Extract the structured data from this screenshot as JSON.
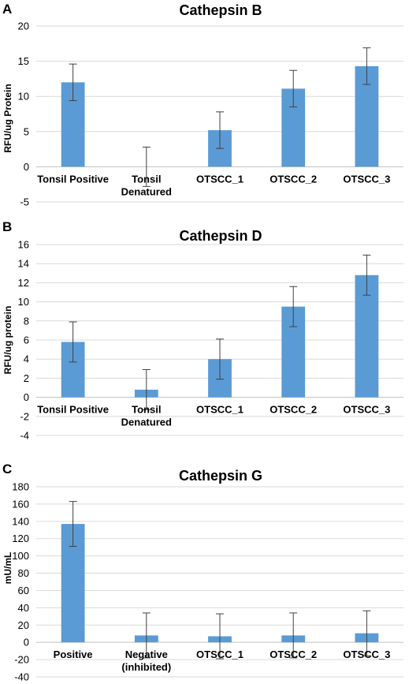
{
  "chart_data": [
    {
      "panel": "A",
      "type": "bar",
      "title": "Cathepsin B",
      "ylabel": "RFU/ug Protein",
      "ylim": [
        -5,
        20
      ],
      "yticks": [
        -5,
        0,
        5,
        10,
        15,
        20
      ],
      "grid": true,
      "categories": [
        [
          "Tonsil Positive"
        ],
        [
          "Tonsil",
          "Denatured"
        ],
        [
          "OTSCC_1"
        ],
        [
          "OTSCC_2"
        ],
        [
          "OTSCC_3"
        ]
      ],
      "values": [
        12.0,
        0.0,
        5.2,
        11.1,
        14.3
      ],
      "errors": [
        2.6,
        2.8,
        2.6,
        2.6,
        2.6
      ],
      "color": "#5b9bd5"
    },
    {
      "panel": "B",
      "type": "bar",
      "title": "Cathepsin D",
      "ylabel": "RFU/ug protein",
      "ylim": [
        -4,
        16
      ],
      "yticks": [
        -4,
        -2,
        0,
        2,
        4,
        6,
        8,
        10,
        12,
        14,
        16
      ],
      "grid": true,
      "categories": [
        [
          "Tonsil Positive"
        ],
        [
          "Tonsil",
          "Denatured"
        ],
        [
          "OTSCC_1"
        ],
        [
          "OTSCC_2"
        ],
        [
          "OTSCC_3"
        ]
      ],
      "values": [
        5.8,
        0.8,
        4.0,
        9.5,
        12.8
      ],
      "errors": [
        2.1,
        2.1,
        2.1,
        2.1,
        2.1
      ],
      "color": "#5b9bd5"
    },
    {
      "panel": "C",
      "type": "bar",
      "title": "Cathepsin G",
      "ylabel": "mU/mL",
      "ylim": [
        -40,
        180
      ],
      "yticks": [
        -40,
        -20,
        0,
        20,
        40,
        60,
        80,
        100,
        120,
        140,
        160,
        180
      ],
      "grid": true,
      "categories": [
        [
          "Positive"
        ],
        [
          "Negative",
          "(inhibited)"
        ],
        [
          "OTSCC_1"
        ],
        [
          "OTSCC_2"
        ],
        [
          "OTSCC_3"
        ]
      ],
      "values": [
        137,
        8,
        7,
        8,
        10.5
      ],
      "errors": [
        26,
        26,
        26,
        26,
        26
      ],
      "color": "#5b9bd5"
    }
  ]
}
